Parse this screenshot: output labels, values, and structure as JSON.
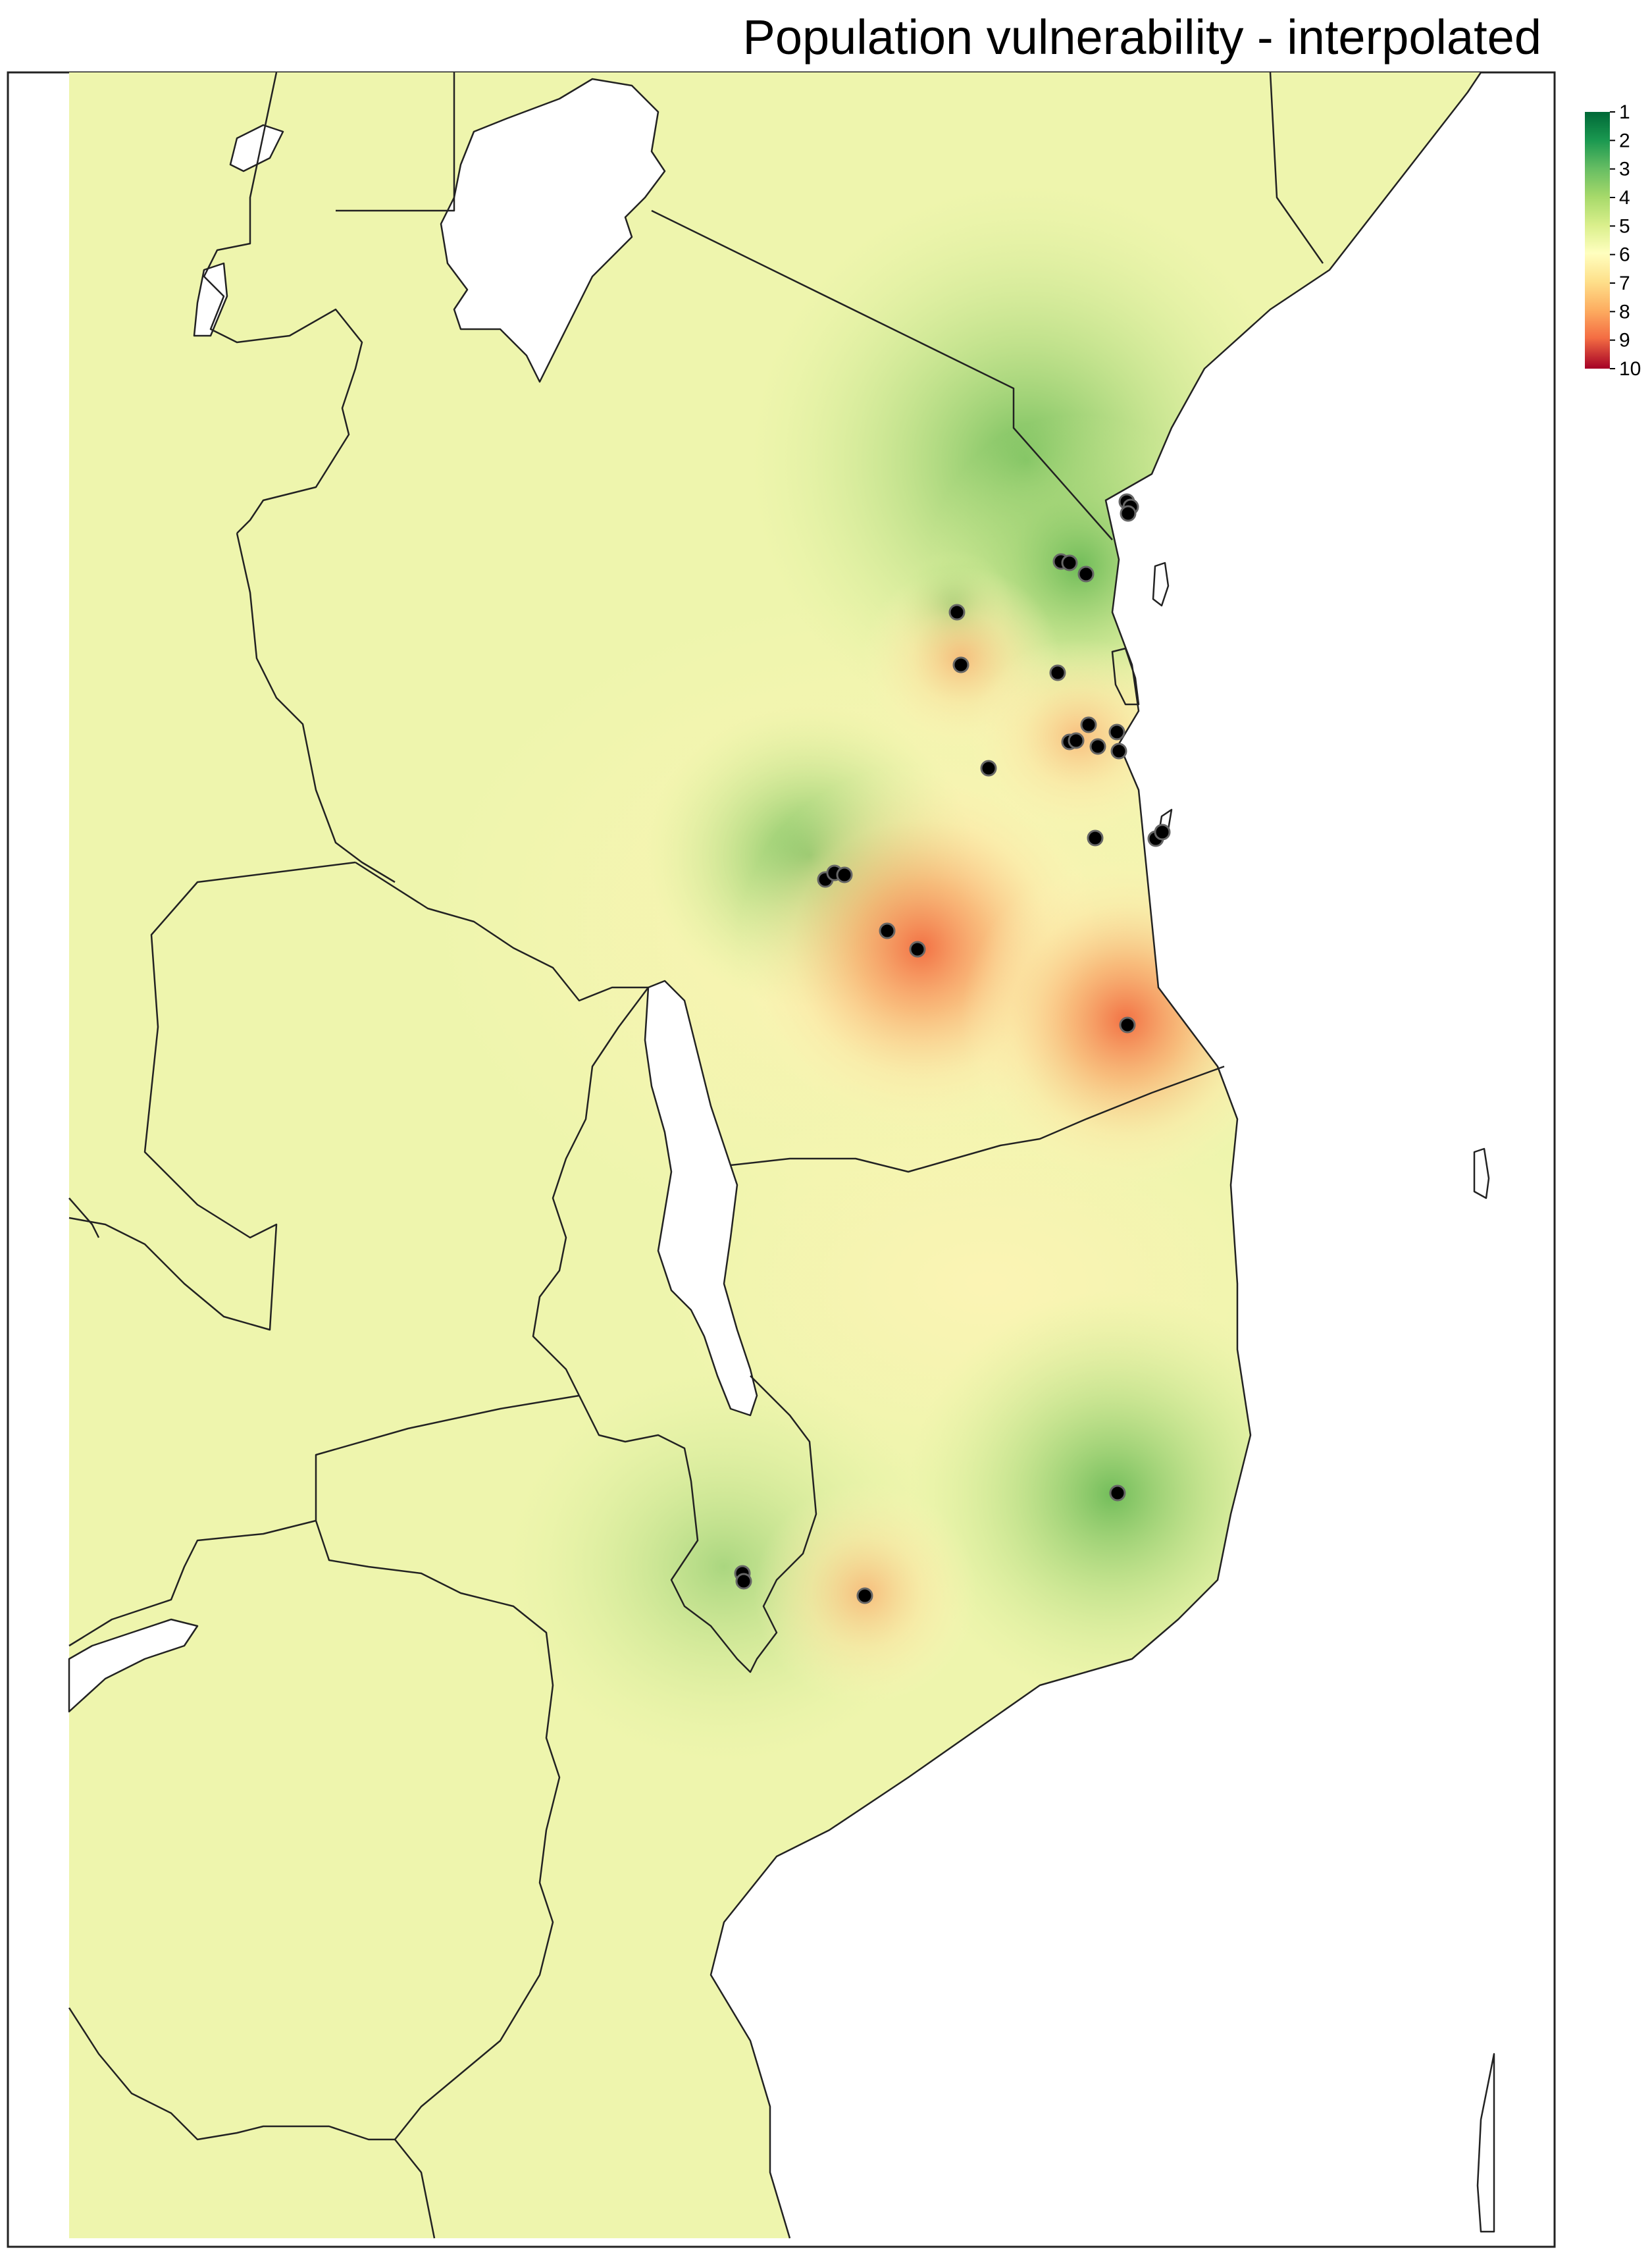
{
  "title": "Population vulnerability - interpolated",
  "legend": {
    "ticks": [
      "1",
      "2",
      "3",
      "4",
      "5",
      "6",
      "7",
      "8",
      "9",
      "10"
    ],
    "colors": [
      "#006837",
      "#1a9850",
      "#66bd63",
      "#a6d96a",
      "#d9ef8b",
      "#ffffbf",
      "#fee08b",
      "#fdae61",
      "#f46d43",
      "#d73027",
      "#a50026"
    ]
  },
  "colors": {
    "base": "#eaf5a6",
    "low": "#7cc25a",
    "high": "#f08a5d",
    "mid": "#fbe4a0",
    "border": "#222222",
    "point": "#000000"
  },
  "hotspots": [
    {
      "kind": "high",
      "level": 8.6
    },
    {
      "kind": "high",
      "level": 8.2
    },
    {
      "kind": "high",
      "level": 7.4
    },
    {
      "kind": "high",
      "level": 7.1
    },
    {
      "kind": "mid",
      "level": 6.6
    },
    {
      "kind": "low",
      "level": 3.2
    },
    {
      "kind": "low",
      "level": 3.6
    },
    {
      "kind": "low",
      "level": 3.8
    },
    {
      "kind": "low",
      "level": 4.0
    },
    {
      "kind": "low",
      "level": 4.1
    }
  ],
  "sites_count": 29
}
